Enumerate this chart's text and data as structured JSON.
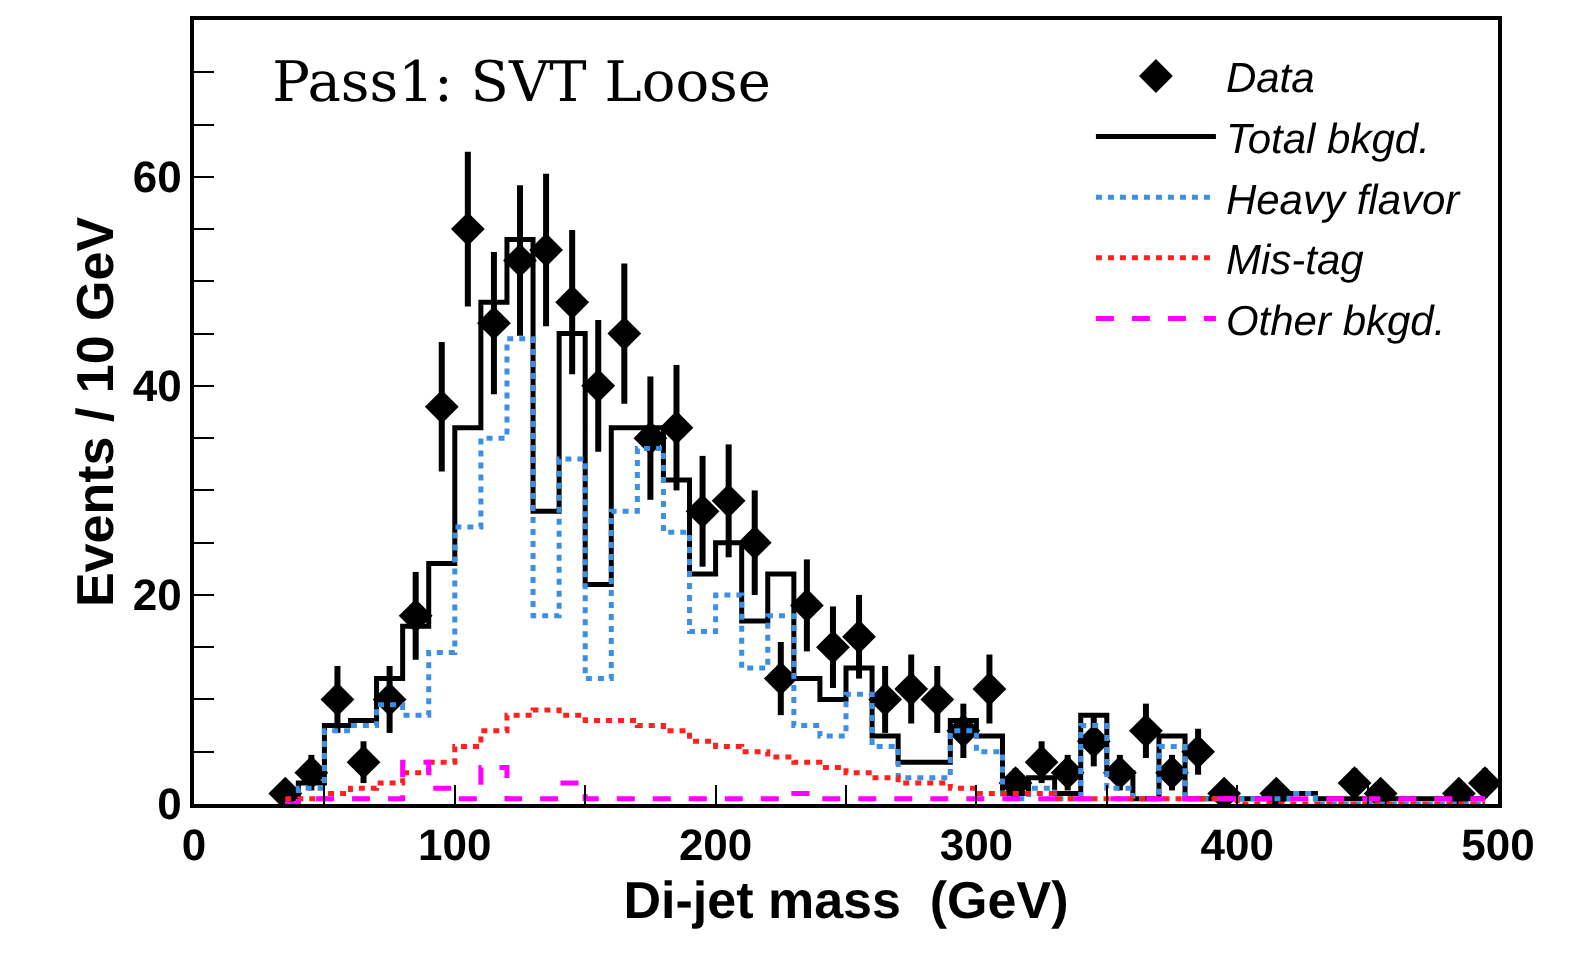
{
  "chart_data": {
    "type": "step",
    "title": "Pass1: SVT Loose",
    "xlabel": "Di-jet mass  (GeV)",
    "ylabel": "Events / 10 GeV",
    "x": [
      35,
      45,
      55,
      65,
      75,
      85,
      95,
      105,
      115,
      125,
      135,
      145,
      155,
      165,
      175,
      185,
      195,
      205,
      215,
      225,
      235,
      245,
      255,
      265,
      275,
      285,
      295,
      305,
      315,
      325,
      335,
      345,
      355,
      365,
      375,
      385,
      395,
      405,
      415,
      425,
      435,
      445,
      455,
      465,
      475,
      485,
      495
    ],
    "series": [
      {
        "name": "Data",
        "type": "scatter",
        "color": "#000000",
        "marker": "diamond",
        "values": [
          1,
          3,
          10,
          4,
          10,
          18,
          38,
          55,
          46,
          52,
          53,
          48,
          40,
          45,
          35,
          36,
          28,
          29,
          25,
          12,
          19,
          15,
          16,
          10,
          11,
          10,
          7,
          11,
          2,
          4,
          3,
          6,
          3,
          7,
          3,
          5,
          1,
          null,
          1,
          null,
          null,
          2,
          1,
          null,
          null,
          1,
          2
        ],
        "errors": [
          1,
          1.7,
          3.2,
          2,
          3.2,
          4.2,
          6.2,
          7.4,
          6.8,
          7.2,
          7.3,
          6.9,
          6.3,
          6.7,
          5.9,
          6,
          5.3,
          5.4,
          5,
          3.5,
          4.4,
          3.9,
          4,
          3.2,
          3.3,
          3.2,
          2.6,
          3.3,
          1.4,
          2,
          1.7,
          2.4,
          1.7,
          2.6,
          1.7,
          2.2,
          1,
          null,
          1,
          null,
          null,
          1.4,
          1,
          null,
          null,
          1,
          1.4
        ]
      },
      {
        "name": "Total bkgd.",
        "color": "#000000",
        "line_style": "solid",
        "values": [
          0.5,
          2,
          7.5,
          8,
          12,
          17,
          23,
          36,
          48,
          54,
          28,
          45,
          21,
          36,
          36,
          31,
          22,
          25,
          17.5,
          22,
          12,
          10,
          13,
          6.5,
          4,
          4,
          8,
          6.5,
          1,
          2.5,
          1,
          8.5,
          3,
          0.5,
          6.5,
          0.5,
          0.5,
          0.5,
          0.5,
          1,
          0.5,
          0.5,
          0.5,
          0.5,
          0.5,
          0.5,
          0.5
        ]
      },
      {
        "name": "Heavy flavor",
        "color": "#3c8ee6",
        "line_style": "dotted",
        "values": [
          0,
          1.5,
          7,
          7.5,
          9.5,
          8.5,
          14.5,
          26.5,
          35,
          44.5,
          18,
          33,
          12,
          28,
          34,
          26,
          16.5,
          20,
          13,
          18,
          7.5,
          6.5,
          10.5,
          5.5,
          2.5,
          2.5,
          7,
          5,
          0.5,
          1.5,
          0.5,
          7.5,
          1.5,
          0.5,
          5.5,
          0.5,
          0.5,
          0.5,
          0.5,
          1,
          0,
          0,
          0,
          0,
          0,
          0,
          0
        ]
      },
      {
        "name": "Mis-tag",
        "color": "#ff2020",
        "line_style": "dotted",
        "values": [
          0.5,
          0.5,
          1,
          1.5,
          2,
          3,
          4,
          5.5,
          7,
          8.5,
          9,
          8.5,
          8,
          8,
          7.5,
          7,
          6,
          5.5,
          5,
          4.5,
          4,
          3.5,
          3,
          2.5,
          2,
          2,
          1.5,
          1,
          1,
          1,
          0.5,
          0.5,
          0.5,
          0.5,
          0.5,
          0.5,
          0.5,
          0,
          0,
          0,
          0,
          0,
          0,
          0,
          0,
          0,
          0
        ]
      },
      {
        "name": "Other bkgd.",
        "color": "#ff00ff",
        "line_style": "dashed",
        "values": [
          0,
          0.5,
          0.5,
          0.5,
          0.5,
          4,
          1.5,
          0.5,
          3.5,
          0.5,
          0.5,
          2,
          0.5,
          0.5,
          0.5,
          0.5,
          0.5,
          0.5,
          0.5,
          0.5,
          1,
          0.5,
          0.5,
          0.5,
          0.5,
          0.5,
          0.5,
          0.5,
          0.5,
          0.5,
          0.5,
          0.5,
          0.5,
          0.5,
          0.5,
          0.5,
          0.5,
          0.5,
          0.5,
          0.5,
          0.5,
          0.5,
          0.5,
          0.5,
          0.5,
          0.5,
          0.5
        ]
      }
    ],
    "xlim": [
      0,
      500
    ],
    "xticks": [
      0,
      {
        "value": 50,
        "label": null
      },
      100,
      {
        "value": 150,
        "label": null
      },
      200,
      {
        "value": 250,
        "label": null
      },
      300,
      {
        "value": 350,
        "label": null
      },
      400,
      {
        "value": 450,
        "label": null
      },
      500
    ],
    "ylim": [
      0,
      75
    ],
    "yticks": [
      0,
      {
        "value": 5,
        "label": null
      },
      {
        "value": 10,
        "label": null
      },
      {
        "value": 15,
        "label": null
      },
      20,
      {
        "value": 25,
        "label": null
      },
      {
        "value": 30,
        "label": null
      },
      {
        "value": 35,
        "label": null
      },
      40,
      {
        "value": 45,
        "label": null
      },
      {
        "value": 50,
        "label": null
      },
      {
        "value": 55,
        "label": null
      },
      60,
      {
        "value": 65,
        "label": null
      },
      {
        "value": 70,
        "label": null
      }
    ],
    "legend": "top right"
  }
}
